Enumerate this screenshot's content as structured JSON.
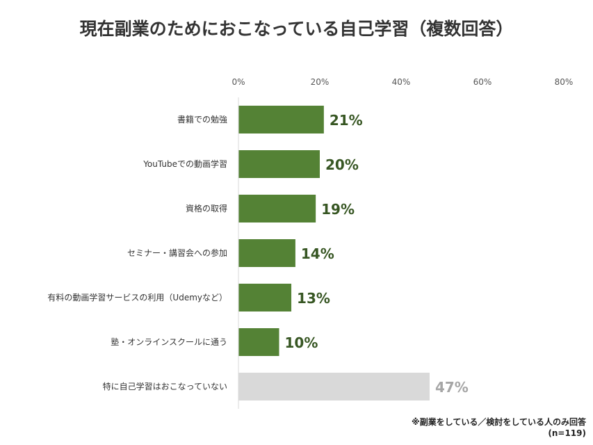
{
  "chart_data": {
    "type": "bar",
    "orientation": "horizontal",
    "title": "現在副業のためにおこなっている自己学習（複数回答）",
    "categories": [
      "書籍での勉強",
      "YouTubeでの動画学習",
      "資格の取得",
      "セミナー・講習会への参加",
      "有料の動画学習サービスの利用（Udemyなど）",
      "塾・オンラインスクールに通う",
      "特に自己学習はおこなっていない"
    ],
    "values": [
      21,
      20,
      19,
      14,
      13,
      10,
      47
    ],
    "value_labels": [
      "21%",
      "20%",
      "19%",
      "14%",
      "13%",
      "10%",
      "47%"
    ],
    "bar_colors": [
      "#548235",
      "#548235",
      "#548235",
      "#548235",
      "#548235",
      "#548235",
      "#d9d9d9"
    ],
    "label_colors": [
      "#375623",
      "#375623",
      "#375623",
      "#375623",
      "#375623",
      "#375623",
      "#a6a6a6"
    ],
    "xlim": [
      0,
      80
    ],
    "xticks": [
      0,
      20,
      40,
      60,
      80
    ],
    "xtick_labels": [
      "0%",
      "20%",
      "40%",
      "60%",
      "80%"
    ],
    "grid": false,
    "axis_position": "top"
  },
  "footnotes": {
    "note": "※副業をしている／検討をしている人のみ回答",
    "sample": "(n=119)"
  }
}
